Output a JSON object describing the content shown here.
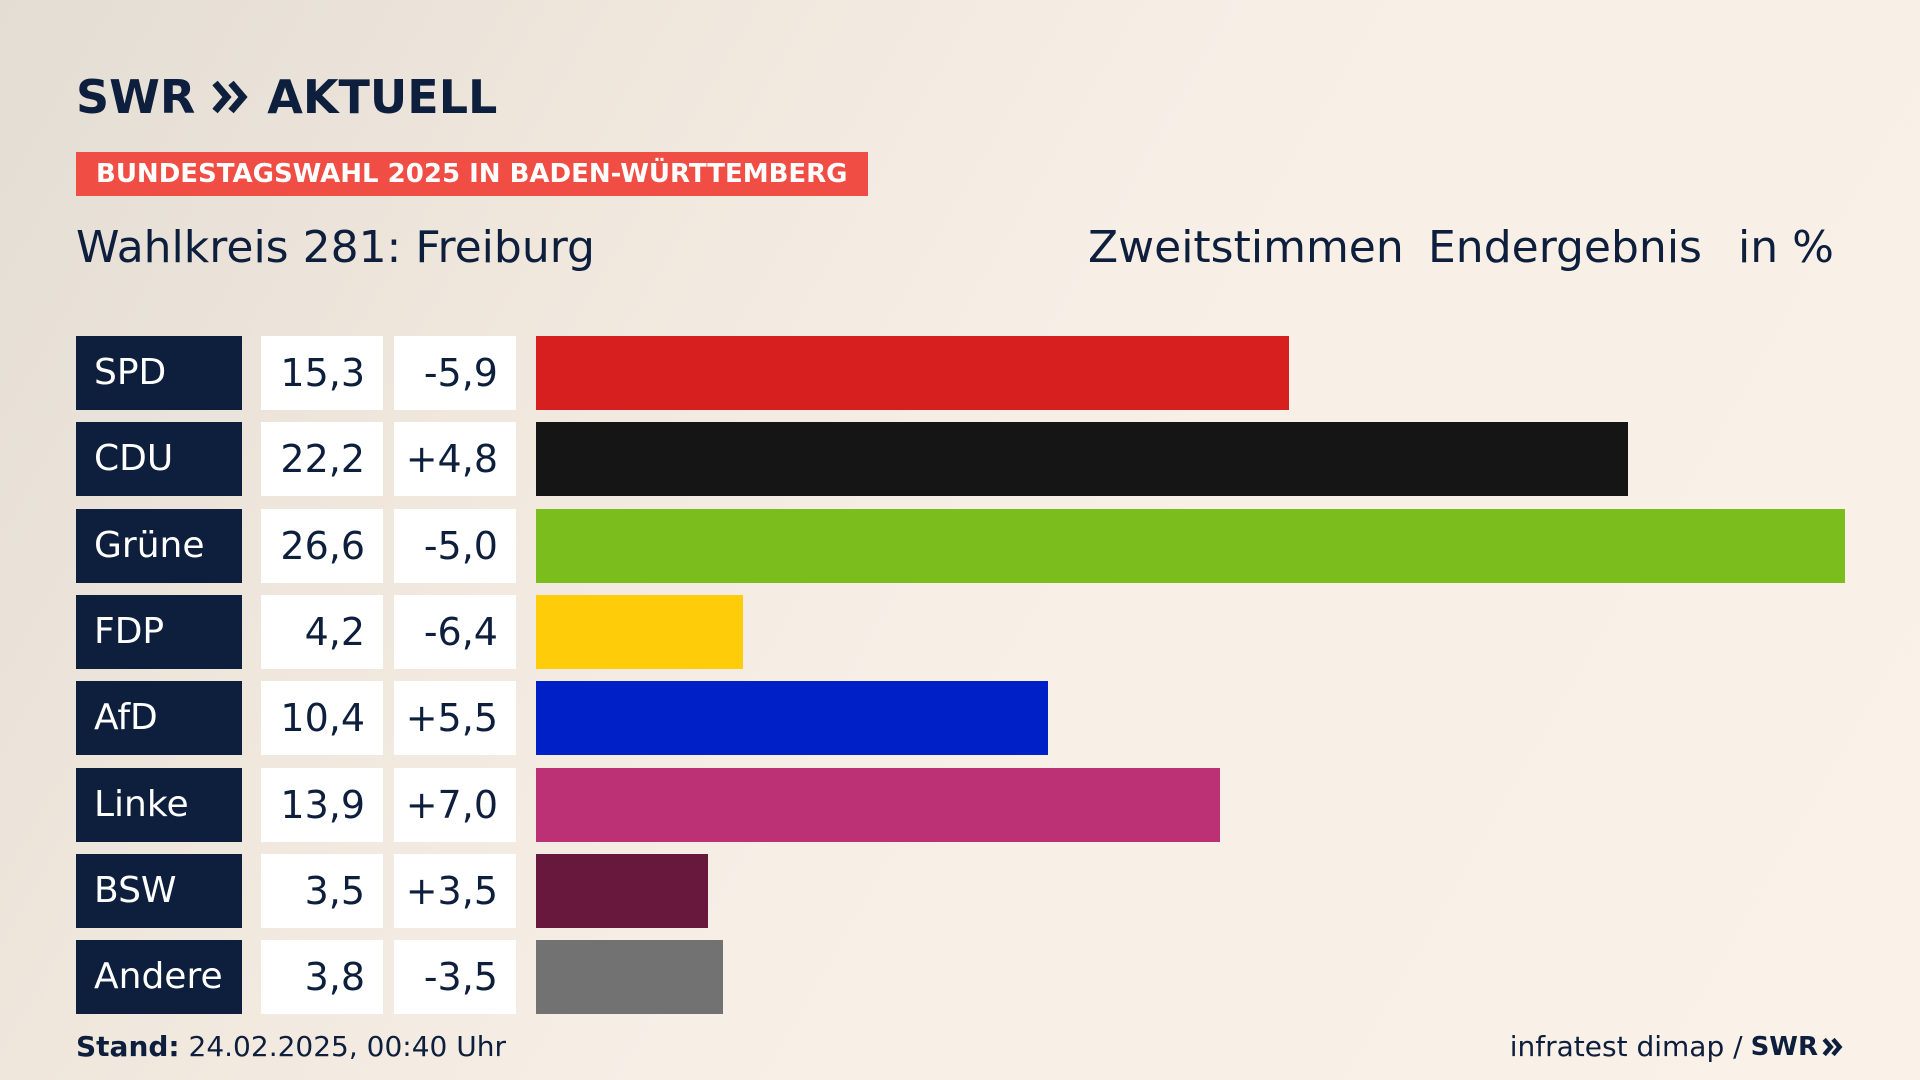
{
  "brand": {
    "logo_left": "SWR",
    "logo_right": "AKTUELL",
    "banner": "BUNDESTAGSWAHL 2025 IN BADEN-WÜRTTEMBERG"
  },
  "header": {
    "title": "Wahlkreis 281: Freiburg",
    "vote_type": "Zweitstimmen",
    "status": "Endergebnis",
    "unit": "in %"
  },
  "footer": {
    "stand_label": "Stand:",
    "stand_value": "24.02.2025, 00:40 Uhr",
    "source": "infratest dimap /",
    "source_brand": "SWR"
  },
  "chart_data": {
    "type": "bar",
    "orientation": "horizontal",
    "title": "Wahlkreis 281: Freiburg",
    "unit": "%",
    "xlim": [
      0,
      26.6
    ],
    "categories": [
      "SPD",
      "CDU",
      "Grüne",
      "FDP",
      "AfD",
      "Linke",
      "BSW",
      "Andere"
    ],
    "values": [
      15.3,
      22.2,
      26.6,
      4.2,
      10.4,
      13.9,
      3.5,
      3.8
    ],
    "value_labels": [
      "15,3",
      "22,2",
      "26,6",
      "4,2",
      "10,4",
      "13,9",
      "3,5",
      "3,8"
    ],
    "change_labels": [
      "-5,9",
      "+4,8",
      "-5,0",
      "-6,4",
      "+5,5",
      "+7,0",
      "+3,5",
      "-3,5"
    ],
    "colors": [
      "#d81f20",
      "#151515",
      "#7bbd1d",
      "#ffcc0a",
      "#0020c7",
      "#bc3075",
      "#68183d",
      "#727272"
    ]
  }
}
